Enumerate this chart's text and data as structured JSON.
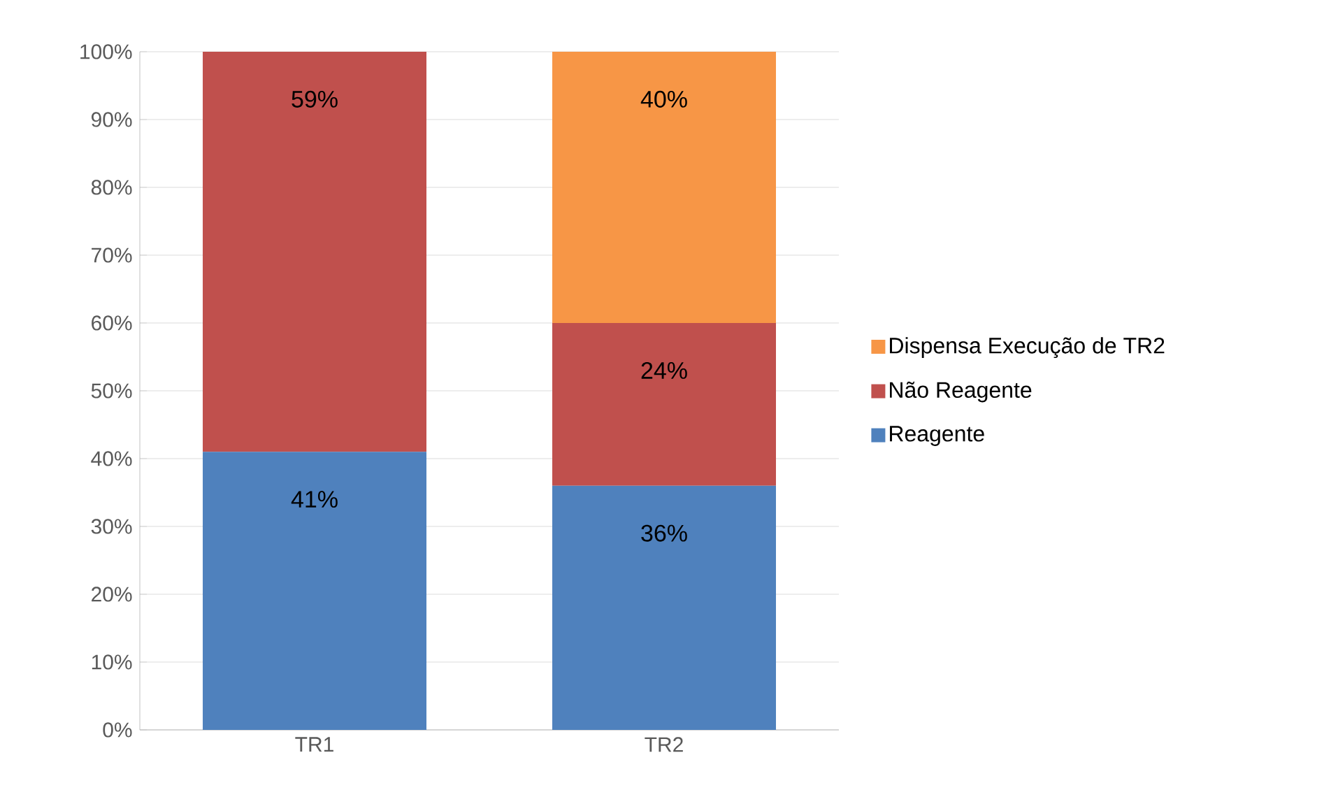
{
  "chart_data": {
    "type": "bar",
    "stacked": true,
    "categories": [
      "TR1",
      "TR2"
    ],
    "series": [
      {
        "name": "Reagente",
        "color": "#4f81bd",
        "values": [
          41,
          36
        ],
        "value_labels": [
          "41%",
          "36%"
        ]
      },
      {
        "name": "Não Reagente",
        "color": "#c0504d",
        "values": [
          59,
          24
        ],
        "value_labels": [
          "59%",
          "24%"
        ]
      },
      {
        "name": "Dispensa Execução de TR2",
        "color": "#f79646",
        "values": [
          null,
          40
        ],
        "value_labels": [
          null,
          "40%"
        ]
      }
    ],
    "ylim": [
      0,
      100
    ],
    "yticks": [
      {
        "value": 0,
        "label": "0%"
      },
      {
        "value": 10,
        "label": "10%"
      },
      {
        "value": 20,
        "label": "20%"
      },
      {
        "value": 30,
        "label": "30%"
      },
      {
        "value": 40,
        "label": "40%"
      },
      {
        "value": 50,
        "label": "50%"
      },
      {
        "value": 60,
        "label": "60%"
      },
      {
        "value": 70,
        "label": "70%"
      },
      {
        "value": 80,
        "label": "80%"
      },
      {
        "value": 90,
        "label": "90%"
      },
      {
        "value": 100,
        "label": "100%"
      }
    ],
    "grid": "y",
    "legend": "right"
  }
}
